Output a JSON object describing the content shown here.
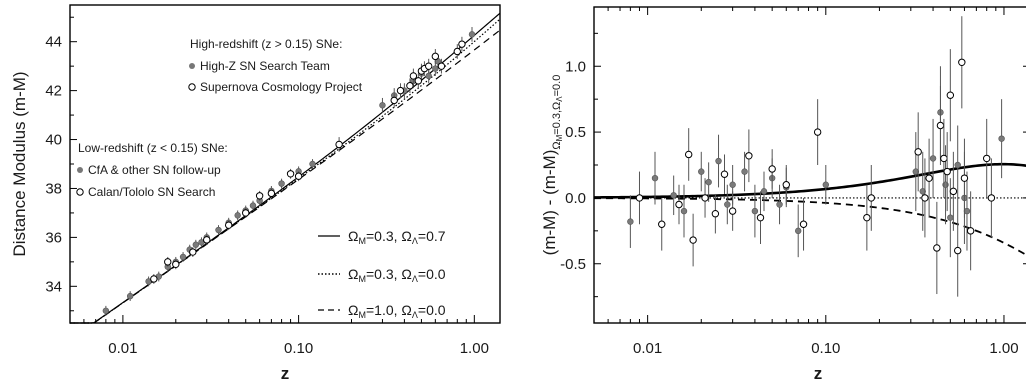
{
  "chart_data": [
    {
      "type": "scatter",
      "xlabel": "z",
      "ylabel": "Distance Modulus (m-M)",
      "xscale": "log",
      "xlim": [
        0.005,
        1.4
      ],
      "ylim": [
        32.5,
        45.5
      ],
      "xticks": [
        {
          "v": 0.01,
          "label": "0.01"
        },
        {
          "v": 0.1,
          "label": "0.10"
        },
        {
          "v": 1.0,
          "label": "1.00"
        }
      ],
      "yticks": [
        {
          "v": 34,
          "label": "34"
        },
        {
          "v": 36,
          "label": "36"
        },
        {
          "v": 38,
          "label": "38"
        },
        {
          "v": 40,
          "label": "40"
        },
        {
          "v": 42,
          "label": "42"
        },
        {
          "v": 44,
          "label": "44"
        }
      ],
      "legend_groups": [
        {
          "heading": "High-redshift (z > 0.15) SNe:",
          "items": [
            {
              "label": "High-Z SN Search Team",
              "marker": "filled"
            },
            {
              "label": "Supernova Cosmology Project",
              "marker": "open"
            }
          ]
        },
        {
          "heading": "Low-redshift (z < 0.15) SNe:",
          "items": [
            {
              "label": "CfA & other SN follow-up",
              "marker": "filled"
            },
            {
              "label": "Calan/Tololo SN Search",
              "marker": "open"
            }
          ]
        }
      ],
      "model_legend": [
        {
          "om": "0.3",
          "ol": "0.7",
          "style": "solid"
        },
        {
          "om": "0.3",
          "ol": "0.0",
          "style": "dotted"
        },
        {
          "om": "1.0",
          "ol": "0.0",
          "style": "dashed"
        }
      ],
      "series": [
        {
          "name": "CfA & other SN follow-up",
          "marker": "filled",
          "points": [
            {
              "x": 0.008,
              "y": 33.0,
              "e": 0.2
            },
            {
              "x": 0.011,
              "y": 33.6,
              "e": 0.2
            },
            {
              "x": 0.014,
              "y": 34.2,
              "e": 0.2
            },
            {
              "x": 0.016,
              "y": 34.4,
              "e": 0.2
            },
            {
              "x": 0.018,
              "y": 34.8,
              "e": 0.2
            },
            {
              "x": 0.02,
              "y": 35.0,
              "e": 0.2
            },
            {
              "x": 0.022,
              "y": 35.2,
              "e": 0.2
            },
            {
              "x": 0.024,
              "y": 35.5,
              "e": 0.2
            },
            {
              "x": 0.026,
              "y": 35.7,
              "e": 0.2
            },
            {
              "x": 0.028,
              "y": 35.8,
              "e": 0.2
            },
            {
              "x": 0.03,
              "y": 36.0,
              "e": 0.2
            },
            {
              "x": 0.035,
              "y": 36.3,
              "e": 0.2
            },
            {
              "x": 0.04,
              "y": 36.6,
              "e": 0.2
            },
            {
              "x": 0.045,
              "y": 36.9,
              "e": 0.2
            },
            {
              "x": 0.05,
              "y": 37.1,
              "e": 0.2
            },
            {
              "x": 0.055,
              "y": 37.3,
              "e": 0.2
            },
            {
              "x": 0.06,
              "y": 37.5,
              "e": 0.2
            },
            {
              "x": 0.07,
              "y": 37.9,
              "e": 0.2
            },
            {
              "x": 0.08,
              "y": 38.2,
              "e": 0.2
            },
            {
              "x": 0.1,
              "y": 38.7,
              "e": 0.2
            },
            {
              "x": 0.12,
              "y": 39.0,
              "e": 0.2
            }
          ]
        },
        {
          "name": "Calan/Tololo SN Search",
          "marker": "open",
          "points": [
            {
              "x": 0.015,
              "y": 34.3,
              "e": 0.2
            },
            {
              "x": 0.018,
              "y": 35.0,
              "e": 0.2
            },
            {
              "x": 0.02,
              "y": 34.9,
              "e": 0.2
            },
            {
              "x": 0.025,
              "y": 35.4,
              "e": 0.2
            },
            {
              "x": 0.03,
              "y": 35.9,
              "e": 0.2
            },
            {
              "x": 0.04,
              "y": 36.5,
              "e": 0.2
            },
            {
              "x": 0.05,
              "y": 37.0,
              "e": 0.2
            },
            {
              "x": 0.06,
              "y": 37.7,
              "e": 0.2
            },
            {
              "x": 0.07,
              "y": 37.8,
              "e": 0.2
            },
            {
              "x": 0.09,
              "y": 38.6,
              "e": 0.2
            },
            {
              "x": 0.1,
              "y": 38.5,
              "e": 0.2
            }
          ]
        },
        {
          "name": "High-Z SN Search Team",
          "marker": "filled",
          "points": [
            {
              "x": 0.3,
              "y": 41.4,
              "e": 0.3
            },
            {
              "x": 0.35,
              "y": 41.8,
              "e": 0.3
            },
            {
              "x": 0.4,
              "y": 42.0,
              "e": 0.3
            },
            {
              "x": 0.45,
              "y": 42.4,
              "e": 0.3
            },
            {
              "x": 0.5,
              "y": 42.7,
              "e": 0.3
            },
            {
              "x": 0.55,
              "y": 42.6,
              "e": 0.3
            },
            {
              "x": 0.6,
              "y": 42.9,
              "e": 0.3
            },
            {
              "x": 0.62,
              "y": 43.2,
              "e": 0.3
            },
            {
              "x": 0.97,
              "y": 44.3,
              "e": 0.3
            }
          ]
        },
        {
          "name": "Supernova Cosmology Project",
          "marker": "open",
          "points": [
            {
              "x": 0.17,
              "y": 39.8,
              "e": 0.3
            },
            {
              "x": 0.35,
              "y": 41.6,
              "e": 0.3
            },
            {
              "x": 0.38,
              "y": 42.0,
              "e": 0.3
            },
            {
              "x": 0.43,
              "y": 42.2,
              "e": 0.3
            },
            {
              "x": 0.45,
              "y": 42.6,
              "e": 0.3
            },
            {
              "x": 0.48,
              "y": 42.4,
              "e": 0.3
            },
            {
              "x": 0.5,
              "y": 42.8,
              "e": 0.3
            },
            {
              "x": 0.52,
              "y": 42.9,
              "e": 0.3
            },
            {
              "x": 0.55,
              "y": 43.0,
              "e": 0.3
            },
            {
              "x": 0.6,
              "y": 43.4,
              "e": 0.3
            },
            {
              "x": 0.65,
              "y": 43.0,
              "e": 0.3
            },
            {
              "x": 0.8,
              "y": 43.6,
              "e": 0.3
            },
            {
              "x": 0.85,
              "y": 43.9,
              "e": 0.3
            }
          ]
        }
      ]
    },
    {
      "type": "scatter",
      "xlabel": "z",
      "ylabel": "(m-M) - (m-M)",
      "ylabel_sub": "ΩM=0.3,ΩΛ=0.0",
      "xscale": "log",
      "xlim": [
        0.005,
        1.4
      ],
      "ylim": [
        -0.95,
        1.45
      ],
      "xticks": [
        {
          "v": 0.01,
          "label": "0.01"
        },
        {
          "v": 0.1,
          "label": "0.10"
        },
        {
          "v": 1.0,
          "label": "1.00"
        }
      ],
      "yticks": [
        {
          "v": -0.5,
          "label": "-0.5"
        },
        {
          "v": 0.0,
          "label": "0.0"
        },
        {
          "v": 0.5,
          "label": "0.5"
        },
        {
          "v": 1.0,
          "label": "1.0"
        }
      ],
      "series": [
        {
          "name": "filled",
          "marker": "filled",
          "points": [
            {
              "x": 0.008,
              "y": -0.18,
              "e": 0.2
            },
            {
              "x": 0.011,
              "y": 0.15,
              "e": 0.2
            },
            {
              "x": 0.014,
              "y": 0.02,
              "e": 0.15
            },
            {
              "x": 0.016,
              "y": -0.1,
              "e": 0.2
            },
            {
              "x": 0.02,
              "y": 0.2,
              "e": 0.15
            },
            {
              "x": 0.022,
              "y": 0.12,
              "e": 0.15
            },
            {
              "x": 0.025,
              "y": 0.28,
              "e": 0.2
            },
            {
              "x": 0.028,
              "y": -0.05,
              "e": 0.15
            },
            {
              "x": 0.03,
              "y": 0.1,
              "e": 0.15
            },
            {
              "x": 0.035,
              "y": 0.2,
              "e": 0.15
            },
            {
              "x": 0.04,
              "y": -0.1,
              "e": 0.2
            },
            {
              "x": 0.045,
              "y": 0.05,
              "e": 0.15
            },
            {
              "x": 0.05,
              "y": 0.15,
              "e": 0.15
            },
            {
              "x": 0.055,
              "y": -0.05,
              "e": 0.15
            },
            {
              "x": 0.06,
              "y": 0.08,
              "e": 0.15
            },
            {
              "x": 0.07,
              "y": -0.25,
              "e": 0.2
            },
            {
              "x": 0.1,
              "y": 0.1,
              "e": 0.15
            },
            {
              "x": 0.32,
              "y": 0.2,
              "e": 0.3
            },
            {
              "x": 0.35,
              "y": 0.05,
              "e": 0.3
            },
            {
              "x": 0.4,
              "y": 0.3,
              "e": 0.3
            },
            {
              "x": 0.44,
              "y": 0.65,
              "e": 0.35
            },
            {
              "x": 0.47,
              "y": 0.1,
              "e": 0.3
            },
            {
              "x": 0.5,
              "y": -0.15,
              "e": 0.3
            },
            {
              "x": 0.55,
              "y": 0.25,
              "e": 0.3
            },
            {
              "x": 0.6,
              "y": 0.0,
              "e": 0.35
            },
            {
              "x": 0.62,
              "y": -0.1,
              "e": 0.3
            },
            {
              "x": 0.97,
              "y": 0.45,
              "e": 0.3
            }
          ]
        },
        {
          "name": "open",
          "marker": "open",
          "points": [
            {
              "x": 0.009,
              "y": 0.0,
              "e": 0.2
            },
            {
              "x": 0.012,
              "y": -0.2,
              "e": 0.2
            },
            {
              "x": 0.015,
              "y": -0.05,
              "e": 0.15
            },
            {
              "x": 0.017,
              "y": 0.33,
              "e": 0.2
            },
            {
              "x": 0.018,
              "y": -0.32,
              "e": 0.2
            },
            {
              "x": 0.021,
              "y": 0.0,
              "e": 0.15
            },
            {
              "x": 0.024,
              "y": -0.12,
              "e": 0.15
            },
            {
              "x": 0.027,
              "y": 0.18,
              "e": 0.15
            },
            {
              "x": 0.03,
              "y": -0.1,
              "e": 0.15
            },
            {
              "x": 0.037,
              "y": 0.32,
              "e": 0.2
            },
            {
              "x": 0.043,
              "y": -0.15,
              "e": 0.2
            },
            {
              "x": 0.05,
              "y": 0.22,
              "e": 0.15
            },
            {
              "x": 0.06,
              "y": 0.1,
              "e": 0.15
            },
            {
              "x": 0.075,
              "y": -0.2,
              "e": 0.2
            },
            {
              "x": 0.09,
              "y": 0.5,
              "e": 0.25
            },
            {
              "x": 0.17,
              "y": -0.15,
              "e": 0.25
            },
            {
              "x": 0.18,
              "y": 0.0,
              "e": 0.25
            },
            {
              "x": 0.33,
              "y": 0.35,
              "e": 0.3
            },
            {
              "x": 0.36,
              "y": 0.0,
              "e": 0.3
            },
            {
              "x": 0.38,
              "y": 0.15,
              "e": 0.3
            },
            {
              "x": 0.42,
              "y": -0.38,
              "e": 0.35
            },
            {
              "x": 0.44,
              "y": 0.55,
              "e": 0.3
            },
            {
              "x": 0.46,
              "y": 0.3,
              "e": 0.3
            },
            {
              "x": 0.48,
              "y": 0.2,
              "e": 0.3
            },
            {
              "x": 0.5,
              "y": 0.78,
              "e": 0.35
            },
            {
              "x": 0.52,
              "y": 0.05,
              "e": 0.3
            },
            {
              "x": 0.55,
              "y": -0.4,
              "e": 0.35
            },
            {
              "x": 0.58,
              "y": 1.03,
              "e": 0.35
            },
            {
              "x": 0.6,
              "y": 0.15,
              "e": 0.3
            },
            {
              "x": 0.65,
              "y": -0.25,
              "e": 0.3
            },
            {
              "x": 0.8,
              "y": 0.3,
              "e": 0.3
            },
            {
              "x": 0.85,
              "y": 0.0,
              "e": 0.3
            }
          ]
        }
      ]
    }
  ]
}
